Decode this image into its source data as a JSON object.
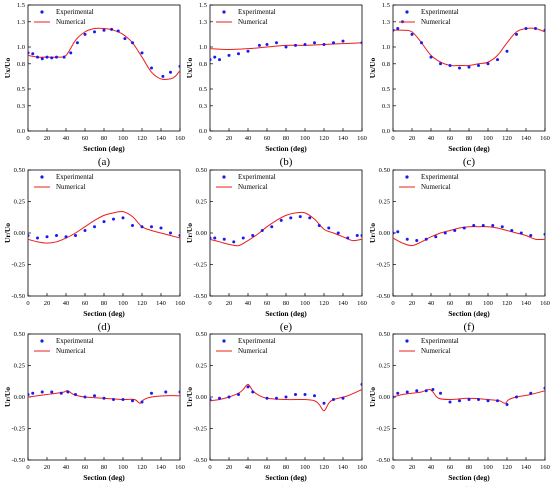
{
  "colors": {
    "experimental": "#1a1aee",
    "numerical": "#ee1c1c",
    "axis": "#000000"
  },
  "chart_data": [
    {
      "type": "scatter",
      "panel_label": "(a)",
      "xlabel": "Section (deg)",
      "ylabel": "Ux/Uo",
      "xlim": [
        0,
        160
      ],
      "ylim": [
        0,
        1.5
      ],
      "xticks": [
        "0",
        "20",
        "40",
        "60",
        "80",
        "100",
        "120",
        "140",
        "160"
      ],
      "yticks": [
        "0.0",
        "0.3",
        "0.5",
        "0.8",
        "1.0",
        "1.3",
        "1.5"
      ],
      "legend": {
        "position": "top-left",
        "entries": [
          "Experimental",
          "Numerical"
        ]
      },
      "series": [
        {
          "name": "Experimental",
          "x": [
            0,
            5,
            10,
            15,
            20,
            25,
            30,
            38,
            45,
            52,
            60,
            70,
            80,
            88,
            95,
            102,
            110,
            120,
            130,
            142,
            150,
            160
          ],
          "y": [
            0.93,
            0.92,
            0.88,
            0.86,
            0.88,
            0.87,
            0.88,
            0.88,
            0.93,
            1.05,
            1.15,
            1.18,
            1.2,
            1.21,
            1.19,
            1.1,
            1.05,
            0.93,
            0.75,
            0.65,
            0.7,
            0.77
          ]
        },
        {
          "name": "Numerical",
          "x": [
            0,
            10,
            20,
            30,
            40,
            50,
            60,
            70,
            80,
            90,
            100,
            110,
            120,
            130,
            140,
            150,
            155,
            160
          ],
          "y": [
            0.9,
            0.88,
            0.88,
            0.88,
            0.9,
            1.08,
            1.18,
            1.22,
            1.22,
            1.2,
            1.15,
            1.05,
            0.88,
            0.7,
            0.62,
            0.62,
            0.65,
            0.72
          ]
        }
      ]
    },
    {
      "type": "scatter",
      "panel_label": "(b)",
      "xlabel": "Section (deg)",
      "ylabel": "Ux/Uo",
      "xlim": [
        0,
        160
      ],
      "ylim": [
        0,
        1.5
      ],
      "xticks": [
        "0",
        "20",
        "40",
        "60",
        "80",
        "100",
        "120",
        "140",
        "160"
      ],
      "yticks": [
        "0.0",
        "0.3",
        "0.5",
        "0.8",
        "1.0",
        "1.3",
        "1.5"
      ],
      "legend": {
        "position": "top-left",
        "entries": [
          "Experimental",
          "Numerical"
        ]
      },
      "series": [
        {
          "name": "Experimental",
          "x": [
            0,
            5,
            10,
            20,
            30,
            40,
            52,
            60,
            70,
            80,
            90,
            100,
            110,
            120,
            130,
            140,
            160
          ],
          "y": [
            0.85,
            0.88,
            0.85,
            0.9,
            0.92,
            0.95,
            1.02,
            1.03,
            1.05,
            1.0,
            1.02,
            1.03,
            1.05,
            1.03,
            1.05,
            1.07,
            1.05
          ]
        },
        {
          "name": "Numerical",
          "x": [
            0,
            20,
            40,
            60,
            80,
            100,
            120,
            140,
            160
          ],
          "y": [
            0.98,
            0.97,
            0.98,
            1.0,
            1.02,
            1.02,
            1.03,
            1.04,
            1.05
          ]
        }
      ]
    },
    {
      "type": "scatter",
      "panel_label": "(c)",
      "xlabel": "Section (deg)",
      "ylabel": "Ux/Uo",
      "xlim": [
        0,
        160
      ],
      "ylim": [
        0,
        1.5
      ],
      "xticks": [
        "0",
        "20",
        "40",
        "60",
        "80",
        "100",
        "120",
        "140",
        "160"
      ],
      "yticks": [
        "0.0",
        "0.3",
        "0.5",
        "0.8",
        "1.0",
        "1.3",
        "1.5"
      ],
      "legend": {
        "position": "top-left",
        "entries": [
          "Experimental",
          "Numerical"
        ]
      },
      "series": [
        {
          "name": "Experimental",
          "x": [
            0,
            5,
            10,
            20,
            30,
            40,
            50,
            60,
            70,
            80,
            90,
            100,
            110,
            120,
            130,
            140,
            150,
            160
          ],
          "y": [
            1.2,
            1.22,
            1.3,
            1.15,
            1.05,
            0.88,
            0.8,
            0.78,
            0.75,
            0.76,
            0.78,
            0.8,
            0.85,
            0.95,
            1.15,
            1.22,
            1.22,
            1.2
          ]
        },
        {
          "name": "Numerical",
          "x": [
            0,
            10,
            20,
            30,
            40,
            50,
            60,
            70,
            80,
            90,
            100,
            110,
            120,
            130,
            140,
            150,
            160
          ],
          "y": [
            1.2,
            1.2,
            1.18,
            1.05,
            0.9,
            0.82,
            0.78,
            0.78,
            0.78,
            0.8,
            0.82,
            0.9,
            1.05,
            1.18,
            1.22,
            1.22,
            1.18
          ]
        }
      ]
    },
    {
      "type": "scatter",
      "panel_label": "(d)",
      "xlabel": "Section (deg)",
      "ylabel": "Ur/Uo",
      "xlim": [
        0,
        160
      ],
      "ylim": [
        -0.5,
        0.5
      ],
      "xticks": [
        "0",
        "20",
        "40",
        "60",
        "80",
        "100",
        "120",
        "140",
        "160"
      ],
      "yticks": [
        "-0.50",
        "-0.25",
        "0.00",
        "0.25",
        "0.50"
      ],
      "legend": {
        "position": "top-left",
        "entries": [
          "Experimental",
          "Numerical"
        ]
      },
      "series": [
        {
          "name": "Experimental",
          "x": [
            0,
            10,
            20,
            30,
            40,
            50,
            60,
            70,
            80,
            90,
            100,
            110,
            120,
            130,
            140,
            150,
            160
          ],
          "y": [
            -0.02,
            -0.04,
            -0.03,
            -0.02,
            -0.03,
            -0.02,
            0.02,
            0.05,
            0.09,
            0.11,
            0.12,
            0.06,
            0.05,
            0.05,
            0.04,
            0.0,
            -0.02
          ]
        },
        {
          "name": "Numerical",
          "x": [
            0,
            10,
            20,
            30,
            40,
            50,
            60,
            70,
            80,
            90,
            100,
            110,
            120,
            130,
            140,
            150,
            160
          ],
          "y": [
            -0.05,
            -0.07,
            -0.08,
            -0.07,
            -0.04,
            0.0,
            0.05,
            0.1,
            0.14,
            0.16,
            0.17,
            0.13,
            0.05,
            0.02,
            0.0,
            -0.02,
            -0.04
          ]
        }
      ]
    },
    {
      "type": "scatter",
      "panel_label": "(e)",
      "xlabel": "Section (deg)",
      "ylabel": "Ur/Uo",
      "xlim": [
        0,
        160
      ],
      "ylim": [
        -0.5,
        0.5
      ],
      "xticks": [
        "0",
        "20",
        "40",
        "60",
        "80",
        "100",
        "120",
        "140",
        "160"
      ],
      "yticks": [
        "-0.50",
        "-0.25",
        "0.00",
        "0.25",
        "0.50"
      ],
      "legend": {
        "position": "top-left",
        "entries": [
          "Experimental",
          "Numerical"
        ]
      },
      "series": [
        {
          "name": "Experimental",
          "x": [
            0,
            5,
            15,
            25,
            35,
            45,
            55,
            65,
            75,
            85,
            95,
            105,
            115,
            125,
            135,
            145,
            155,
            160
          ],
          "y": [
            -0.04,
            -0.04,
            -0.05,
            -0.07,
            -0.04,
            -0.02,
            0.02,
            0.05,
            0.1,
            0.12,
            0.13,
            0.12,
            0.06,
            0.04,
            0.0,
            -0.04,
            -0.02,
            -0.02
          ]
        },
        {
          "name": "Numerical",
          "x": [
            0,
            10,
            20,
            30,
            40,
            50,
            60,
            70,
            80,
            90,
            100,
            110,
            120,
            130,
            140,
            150,
            160
          ],
          "y": [
            -0.05,
            -0.07,
            -0.09,
            -0.1,
            -0.06,
            -0.01,
            0.05,
            0.1,
            0.14,
            0.16,
            0.16,
            0.11,
            0.03,
            0.0,
            -0.03,
            -0.06,
            -0.05
          ]
        }
      ]
    },
    {
      "type": "scatter",
      "panel_label": "(f)",
      "xlabel": "Section (deg)",
      "ylabel": "Ur/Uo",
      "xlim": [
        0,
        160
      ],
      "ylim": [
        -0.5,
        0.5
      ],
      "xticks": [
        "0",
        "20",
        "40",
        "60",
        "80",
        "100",
        "120",
        "140",
        "160"
      ],
      "yticks": [
        "-0.50",
        "-0.25",
        "0.00",
        "0.25",
        "0.50"
      ],
      "legend": {
        "position": "top-left",
        "entries": [
          "Experimental",
          "Numerical"
        ]
      },
      "series": [
        {
          "name": "Experimental",
          "x": [
            0,
            5,
            15,
            25,
            35,
            45,
            55,
            65,
            75,
            85,
            95,
            105,
            115,
            125,
            135,
            145,
            160
          ],
          "y": [
            0.0,
            0.01,
            -0.05,
            -0.06,
            -0.05,
            -0.03,
            0.0,
            0.02,
            0.04,
            0.06,
            0.06,
            0.06,
            0.05,
            0.02,
            0.0,
            -0.02,
            -0.01
          ]
        },
        {
          "name": "Numerical",
          "x": [
            0,
            10,
            20,
            30,
            40,
            50,
            60,
            70,
            80,
            90,
            100,
            110,
            120,
            130,
            140,
            150,
            160
          ],
          "y": [
            -0.04,
            -0.08,
            -0.1,
            -0.07,
            -0.03,
            0.0,
            0.02,
            0.04,
            0.05,
            0.05,
            0.05,
            0.04,
            0.02,
            0.0,
            -0.02,
            -0.05,
            -0.05
          ]
        }
      ]
    },
    {
      "type": "scatter",
      "panel_label": "(g)",
      "xlabel": "Section (deg)",
      "ylabel": "Ur/Uo",
      "xlim": [
        0,
        160
      ],
      "ylim": [
        -0.5,
        0.5
      ],
      "xticks": [
        "0",
        "20",
        "40",
        "60",
        "80",
        "100",
        "120",
        "140",
        "160"
      ],
      "yticks": [
        "-0.50",
        "-0.25",
        "0.00",
        "0.25",
        "0.50"
      ],
      "legend": {
        "position": "top-left",
        "entries": [
          "Experimental",
          "Numerical"
        ]
      },
      "series": [
        {
          "name": "Experimental",
          "x": [
            0,
            5,
            15,
            25,
            35,
            42,
            50,
            60,
            70,
            80,
            90,
            100,
            110,
            120,
            130,
            145,
            160
          ],
          "y": [
            0.02,
            0.03,
            0.04,
            0.04,
            0.03,
            0.04,
            0.02,
            0.0,
            0.01,
            -0.01,
            -0.02,
            -0.02,
            -0.03,
            -0.04,
            0.03,
            0.04,
            0.04
          ]
        },
        {
          "name": "Numerical",
          "x": [
            0,
            10,
            20,
            30,
            38,
            42,
            48,
            60,
            80,
            100,
            112,
            118,
            122,
            130,
            145,
            160
          ],
          "y": [
            0.0,
            0.01,
            0.02,
            0.03,
            0.04,
            0.05,
            0.02,
            0.0,
            -0.01,
            -0.02,
            -0.02,
            -0.05,
            -0.02,
            0.0,
            0.01,
            0.01
          ]
        }
      ]
    },
    {
      "type": "scatter",
      "panel_label": "(h)",
      "xlabel": "Section (deg)",
      "ylabel": "Ur/Uo",
      "xlim": [
        0,
        160
      ],
      "ylim": [
        -0.5,
        0.5
      ],
      "xticks": [
        "0",
        "20",
        "40",
        "60",
        "80",
        "100",
        "120",
        "140",
        "160"
      ],
      "yticks": [
        "-0.50",
        "-0.25",
        "0.00",
        "0.25",
        "0.50"
      ],
      "legend": {
        "position": "top-left",
        "entries": [
          "Experimental",
          "Numerical"
        ]
      },
      "series": [
        {
          "name": "Experimental",
          "x": [
            0,
            10,
            20,
            30,
            40,
            45,
            60,
            70,
            80,
            90,
            100,
            110,
            120,
            130,
            140,
            160
          ],
          "y": [
            -0.02,
            -0.01,
            0.0,
            0.02,
            0.08,
            0.04,
            -0.01,
            -0.01,
            0.0,
            0.02,
            0.02,
            0.01,
            -0.05,
            -0.02,
            -0.01,
            0.1
          ]
        },
        {
          "name": "Numerical",
          "x": [
            0,
            10,
            20,
            30,
            35,
            40,
            45,
            50,
            60,
            80,
            100,
            110,
            115,
            120,
            125,
            130,
            145,
            160
          ],
          "y": [
            -0.03,
            -0.02,
            0.0,
            0.03,
            0.06,
            0.1,
            0.05,
            0.02,
            -0.01,
            -0.02,
            -0.02,
            -0.03,
            -0.06,
            -0.11,
            -0.05,
            -0.02,
            0.01,
            0.06
          ]
        }
      ]
    },
    {
      "type": "scatter",
      "panel_label": "(i)",
      "xlabel": "Section (deg)",
      "ylabel": "Ur/Uo",
      "xlim": [
        0,
        160
      ],
      "ylim": [
        -0.5,
        0.5
      ],
      "xticks": [
        "0",
        "20",
        "40",
        "60",
        "80",
        "100",
        "120",
        "140",
        "160"
      ],
      "yticks": [
        "-0.50",
        "-0.25",
        "0.00",
        "0.25",
        "0.50"
      ],
      "legend": {
        "position": "top-left",
        "entries": [
          "Experimental",
          "Numerical"
        ]
      },
      "series": [
        {
          "name": "Experimental",
          "x": [
            0,
            5,
            15,
            25,
            35,
            42,
            50,
            60,
            70,
            80,
            90,
            100,
            110,
            120,
            130,
            145,
            160
          ],
          "y": [
            0.0,
            0.03,
            0.04,
            0.05,
            0.05,
            0.06,
            0.03,
            -0.04,
            -0.03,
            -0.02,
            -0.02,
            -0.03,
            -0.03,
            -0.06,
            0.0,
            0.03,
            0.07
          ]
        },
        {
          "name": "Numerical",
          "x": [
            0,
            10,
            20,
            30,
            38,
            42,
            48,
            60,
            80,
            100,
            112,
            118,
            122,
            130,
            145,
            160
          ],
          "y": [
            0.0,
            0.02,
            0.03,
            0.04,
            0.06,
            0.04,
            -0.01,
            -0.02,
            -0.01,
            -0.02,
            -0.03,
            -0.05,
            -0.02,
            0.0,
            0.02,
            0.05
          ]
        }
      ]
    }
  ]
}
